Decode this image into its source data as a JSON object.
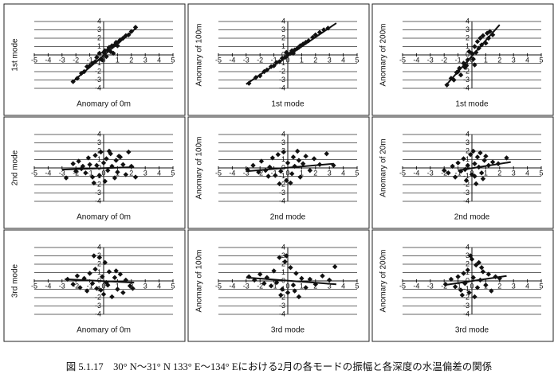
{
  "chart_data": [
    {
      "type": "scatter",
      "ylabel": "1st mode",
      "xlabel": "Anomary of 0m",
      "color": "#111",
      "xlim": [
        -5,
        5
      ],
      "ylim": [
        -4,
        4
      ],
      "xticks": [
        -5,
        -4,
        -3,
        -2,
        -1,
        0,
        1,
        2,
        3,
        4,
        5
      ],
      "yticks": [
        -4,
        -3,
        -2,
        -1,
        0,
        1,
        2,
        3,
        4
      ],
      "grid": true,
      "x": [
        -2.2,
        -1.9,
        -1.6,
        -1.4,
        -1.2,
        -1,
        -0.8,
        -0.6,
        -0.5,
        -0.3,
        -0.2,
        0,
        0.1,
        0.2,
        0.3,
        0.4,
        0.5,
        0.6,
        0.8,
        0.9,
        1,
        1.2,
        1.4,
        1.6,
        1.8,
        2,
        2.3,
        -0.1,
        0.7,
        1.1
      ],
      "y": [
        -3.2,
        -2.8,
        -2.2,
        -2,
        -1.4,
        -1.3,
        -1,
        -0.8,
        -0.3,
        0.2,
        -0.5,
        0.3,
        0.5,
        -0.2,
        0.6,
        0.9,
        0.4,
        1.1,
        1.2,
        1.5,
        1.1,
        1.8,
        2,
        2.3,
        2.4,
        2.8,
        3.3,
        -0.6,
        0.2,
        1.6
      ],
      "trend": {
        "x": [
          -2.3,
          2.4
        ],
        "y": [
          -3.3,
          3.3
        ]
      }
    },
    {
      "type": "scatter",
      "ylabel": "Anomary of 100m",
      "xlabel": "1st mode",
      "color": "#111",
      "xlim": [
        -5,
        5
      ],
      "ylim": [
        -4,
        4
      ],
      "xticks": [
        -5,
        -4,
        -3,
        -2,
        -1,
        0,
        1,
        2,
        3,
        4,
        5
      ],
      "yticks": [
        -4,
        -3,
        -2,
        -1,
        0,
        1,
        2,
        3,
        4
      ],
      "grid": true,
      "x": [
        -2.8,
        -2.3,
        -2,
        -1.7,
        -1.5,
        -1.2,
        -1,
        -0.8,
        -0.6,
        -0.4,
        -0.2,
        0,
        0.2,
        0.3,
        0.5,
        0.7,
        0.9,
        1.1,
        1.3,
        1.5,
        1.8,
        2,
        2.3,
        2.6,
        2.9,
        -0.1,
        0.4,
        0.8
      ],
      "y": [
        -3.4,
        -2.7,
        -2.5,
        -2,
        -1.8,
        -1.4,
        -1.3,
        -0.9,
        -0.8,
        -0.4,
        -0.3,
        0,
        0.2,
        0.5,
        0.6,
        0.8,
        1.1,
        1.3,
        1.5,
        1.7,
        2.1,
        2.4,
        2.7,
        3,
        3.2,
        0.3,
        0.2,
        0.9
      ],
      "trend": {
        "x": [
          -3,
          3.5
        ],
        "y": [
          -3.5,
          3.8
        ]
      }
    },
    {
      "type": "scatter",
      "ylabel": "Anomary of 200m",
      "xlabel": "1st mode",
      "color": "#111",
      "xlim": [
        -5,
        5
      ],
      "ylim": [
        -4,
        4
      ],
      "xticks": [
        -5,
        -4,
        -3,
        -2,
        -1,
        0,
        1,
        2,
        3,
        4,
        5
      ],
      "yticks": [
        -4,
        -3,
        -2,
        -1,
        0,
        1,
        2,
        3,
        4
      ],
      "grid": true,
      "x": [
        -1.8,
        -1.5,
        -1.3,
        -1.1,
        -0.9,
        -0.8,
        -0.6,
        -0.5,
        -0.3,
        -0.2,
        0,
        0.1,
        0.2,
        0.3,
        0.4,
        0.5,
        0.6,
        0.7,
        0.8,
        1,
        1.1,
        1.2,
        1.3,
        1.5,
        -0.4,
        0.2,
        -1
      ],
      "y": [
        -3.6,
        -2.8,
        -3,
        -2.1,
        -1.6,
        -2.4,
        -1,
        -1.5,
        -0.6,
        0.4,
        0.2,
        -0.5,
        1,
        0.3,
        1.6,
        0.8,
        2,
        1.2,
        2.3,
        1.4,
        2.6,
        2,
        2.8,
        2.4,
        -1.3,
        -1.2,
        -2
      ],
      "trend": {
        "x": [
          -1.8,
          2
        ],
        "y": [
          -3.5,
          3.6
        ]
      }
    },
    {
      "type": "scatter",
      "ylabel": "2nd mode",
      "xlabel": "Anomary of 0m",
      "color": "#111",
      "xlim": [
        -5,
        5
      ],
      "ylim": [
        -4,
        4
      ],
      "xticks": [
        -5,
        -4,
        -3,
        -2,
        -1,
        0,
        1,
        2,
        3,
        4,
        5
      ],
      "yticks": [
        -4,
        -3,
        -2,
        -1,
        0,
        1,
        2,
        3,
        4
      ],
      "grid": true,
      "x": [
        -2.7,
        -2.2,
        -2,
        -1.8,
        -1.5,
        -1.3,
        -1.1,
        -1,
        -0.8,
        -0.6,
        -0.5,
        -0.3,
        -0.2,
        0,
        0.1,
        0.2,
        0.3,
        0.5,
        0.6,
        0.8,
        0.9,
        1,
        1.2,
        1.4,
        1.6,
        1.8,
        2,
        2.3,
        -0.7,
        0.4,
        1.1,
        -1.6
      ],
      "y": [
        -1.2,
        0.5,
        -0.4,
        0.8,
        0.2,
        -0.6,
        1.2,
        0.4,
        -1.1,
        1.5,
        0.3,
        -0.9,
        1.9,
        0.6,
        -1.6,
        1.1,
        -0.3,
        1.7,
        0.2,
        -1.2,
        0.9,
        -0.5,
        1.3,
        0.4,
        -0.8,
        1.9,
        0.2,
        -1.1,
        -1.8,
        2,
        1.4,
        -0.1
      ],
      "trend": {
        "x": [
          -3,
          2.2
        ],
        "y": [
          -0.2,
          0.1
        ]
      }
    },
    {
      "type": "scatter",
      "ylabel": "Anomary of 100m",
      "xlabel": "2nd mode",
      "color": "#111",
      "xlim": [
        -5,
        5
      ],
      "ylim": [
        -4,
        4
      ],
      "xticks": [
        -5,
        -4,
        -3,
        -2,
        -1,
        0,
        1,
        2,
        3,
        4,
        5
      ],
      "yticks": [
        -4,
        -3,
        -2,
        -1,
        0,
        1,
        2,
        3,
        4
      ],
      "grid": true,
      "x": [
        -2.9,
        -2.5,
        -2.1,
        -1.9,
        -1.6,
        -1.3,
        -1.1,
        -0.9,
        -0.7,
        -0.5,
        -0.3,
        -0.1,
        0,
        0.2,
        0.4,
        0.5,
        0.7,
        0.9,
        1.1,
        1.3,
        1.6,
        1.9,
        2.3,
        2.8,
        3.3,
        -0.6,
        0.3,
        0.8,
        -1.4
      ],
      "y": [
        -0.2,
        0.3,
        -0.5,
        0.8,
        -0.3,
        0.1,
        1.2,
        -0.9,
        1.6,
        -0.4,
        1.9,
        -1.5,
        0.6,
        -1.8,
        1.3,
        0.2,
        2,
        -1.1,
        0.5,
        1.4,
        -0.3,
        1.1,
        0.4,
        1.7,
        0.3,
        -1.9,
        -0.7,
        0.9,
        -1
      ],
      "trend": {
        "x": [
          -3,
          3.3
        ],
        "y": [
          -0.4,
          0.5
        ]
      }
    },
    {
      "type": "scatter",
      "ylabel": "Anomary of 20m",
      "xlabel": "2nd mode",
      "color": "#111",
      "xlim": [
        -5,
        5
      ],
      "ylim": [
        -4,
        4
      ],
      "xticks": [
        -5,
        -4,
        -3,
        -2,
        -1,
        0,
        1,
        2,
        3,
        4,
        5
      ],
      "yticks": [
        -4,
        -3,
        -2,
        -1,
        0,
        1,
        2,
        3,
        4
      ],
      "grid": true,
      "x": [
        -2,
        -1.7,
        -1.4,
        -1.2,
        -1,
        -0.8,
        -0.6,
        -0.4,
        -0.3,
        -0.1,
        0,
        0.1,
        0.2,
        0.3,
        0.4,
        0.5,
        0.6,
        0.7,
        0.9,
        1,
        1.2,
        1.5,
        1.9,
        2.5,
        -0.5,
        0.8,
        0.2
      ],
      "y": [
        -0.3,
        -0.6,
        0.2,
        -1.1,
        0.6,
        -0.4,
        1.1,
        -1.5,
        0.3,
        1.6,
        -0.8,
        2,
        0.5,
        -1.9,
        1.3,
        0.1,
        1.8,
        -0.6,
        0.9,
        1.4,
        0.3,
        0.7,
        0.5,
        1.2,
        -0.2,
        -1.3,
        -1
      ],
      "trend": {
        "x": [
          -1,
          2.8
        ],
        "y": [
          -0.3,
          0.7
        ]
      }
    },
    {
      "type": "scatter",
      "ylabel": "3rd mode",
      "xlabel": "Anomary of 0m",
      "color": "#111",
      "xlim": [
        -5,
        5
      ],
      "ylim": [
        -4,
        4
      ],
      "xticks": [
        -5,
        -4,
        -3,
        -2,
        -1,
        0,
        1,
        2,
        3,
        4,
        5
      ],
      "yticks": [
        -4,
        -3,
        -2,
        -1,
        0,
        1,
        2,
        3,
        4
      ],
      "grid": true,
      "x": [
        -2.6,
        -2.2,
        -1.9,
        -1.7,
        -1.4,
        -1.2,
        -1,
        -0.8,
        -0.6,
        -0.5,
        -0.3,
        -0.1,
        0,
        0.1,
        0.3,
        0.4,
        0.6,
        0.8,
        1,
        1.2,
        1.4,
        1.6,
        1.9,
        2.1,
        -0.7,
        0.2,
        0.9,
        -0.2
      ],
      "y": [
        0.2,
        -0.4,
        0.6,
        -0.8,
        0.3,
        -1.2,
        0.9,
        -0.3,
        1.4,
        -0.9,
        2.8,
        0.5,
        -1.6,
        2.2,
        -0.5,
        1.1,
        -1.9,
        0.4,
        -1,
        0.8,
        -1.4,
        0.1,
        -0.6,
        -0.9,
        3,
        -0.2,
        1.2,
        -1.1
      ],
      "trend": {
        "x": [
          -2.8,
          2.2
        ],
        "y": [
          0.2,
          -0.2
        ]
      }
    },
    {
      "type": "scatter",
      "ylabel": "Anomary of 100m",
      "xlabel": "3rd mode",
      "color": "#111",
      "xlim": [
        -5,
        5
      ],
      "ylim": [
        -4,
        4
      ],
      "xticks": [
        -5,
        -4,
        -3,
        -2,
        -1,
        0,
        1,
        2,
        3,
        4,
        5
      ],
      "yticks": [
        -4,
        -3,
        -2,
        -1,
        0,
        1,
        2,
        3,
        4
      ],
      "grid": true,
      "x": [
        -2.8,
        -2.4,
        -2,
        -1.7,
        -1.5,
        -1.2,
        -1,
        -0.8,
        -0.6,
        -0.4,
        -0.2,
        0,
        0.2,
        0.4,
        0.6,
        0.8,
        1,
        1.3,
        1.6,
        2,
        2.5,
        3,
        3.4,
        -0.1,
        0.5,
        -0.5
      ],
      "y": [
        0.5,
        0.1,
        0.8,
        -0.3,
        0.4,
        -0.6,
        1.2,
        -0.2,
        2.8,
        -1,
        2.3,
        -1.4,
        1.6,
        -0.5,
        0.9,
        -1.9,
        0.3,
        -0.8,
        0.2,
        -0.4,
        0.6,
        0.1,
        1.7,
        3,
        -1.2,
        -1.7
      ],
      "trend": {
        "x": [
          -3,
          3.5
        ],
        "y": [
          0.4,
          -0.4
        ]
      }
    },
    {
      "type": "scatter",
      "ylabel": "Anomary of 200m",
      "xlabel": "3rd mode",
      "color": "#111",
      "xlim": [
        -5,
        5
      ],
      "ylim": [
        -4,
        4
      ],
      "xticks": [
        -5,
        -4,
        -3,
        -2,
        -1,
        0,
        1,
        2,
        3,
        4,
        5
      ],
      "yticks": [
        -4,
        -3,
        -2,
        -1,
        0,
        1,
        2,
        3,
        4
      ],
      "grid": true,
      "x": [
        -1.9,
        -1.5,
        -1.2,
        -1,
        -0.8,
        -0.6,
        -0.5,
        -0.3,
        -0.2,
        0,
        0.1,
        0.3,
        0.4,
        0.5,
        0.6,
        0.8,
        1,
        1.2,
        1.4,
        1.7,
        2,
        -0.7,
        0.2,
        0.7,
        -0.1
      ],
      "y": [
        -0.4,
        0.2,
        -0.7,
        0.5,
        -1.1,
        0.9,
        -0.3,
        1.3,
        -1.4,
        2.6,
        0.4,
        1.9,
        -0.8,
        2.2,
        0.1,
        1.1,
        -0.5,
        0.8,
        -1.2,
        0.5,
        0.3,
        -1.7,
        -1.9,
        1.6,
        3
      ],
      "trend": {
        "x": [
          -2,
          2.5
        ],
        "y": [
          -0.5,
          0.6
        ]
      }
    }
  ],
  "caption": "図 5.1.17　30° N～31° N 133° E～134° Eにおける2月の各モードの振幅と各深度の水温偏差の関係"
}
